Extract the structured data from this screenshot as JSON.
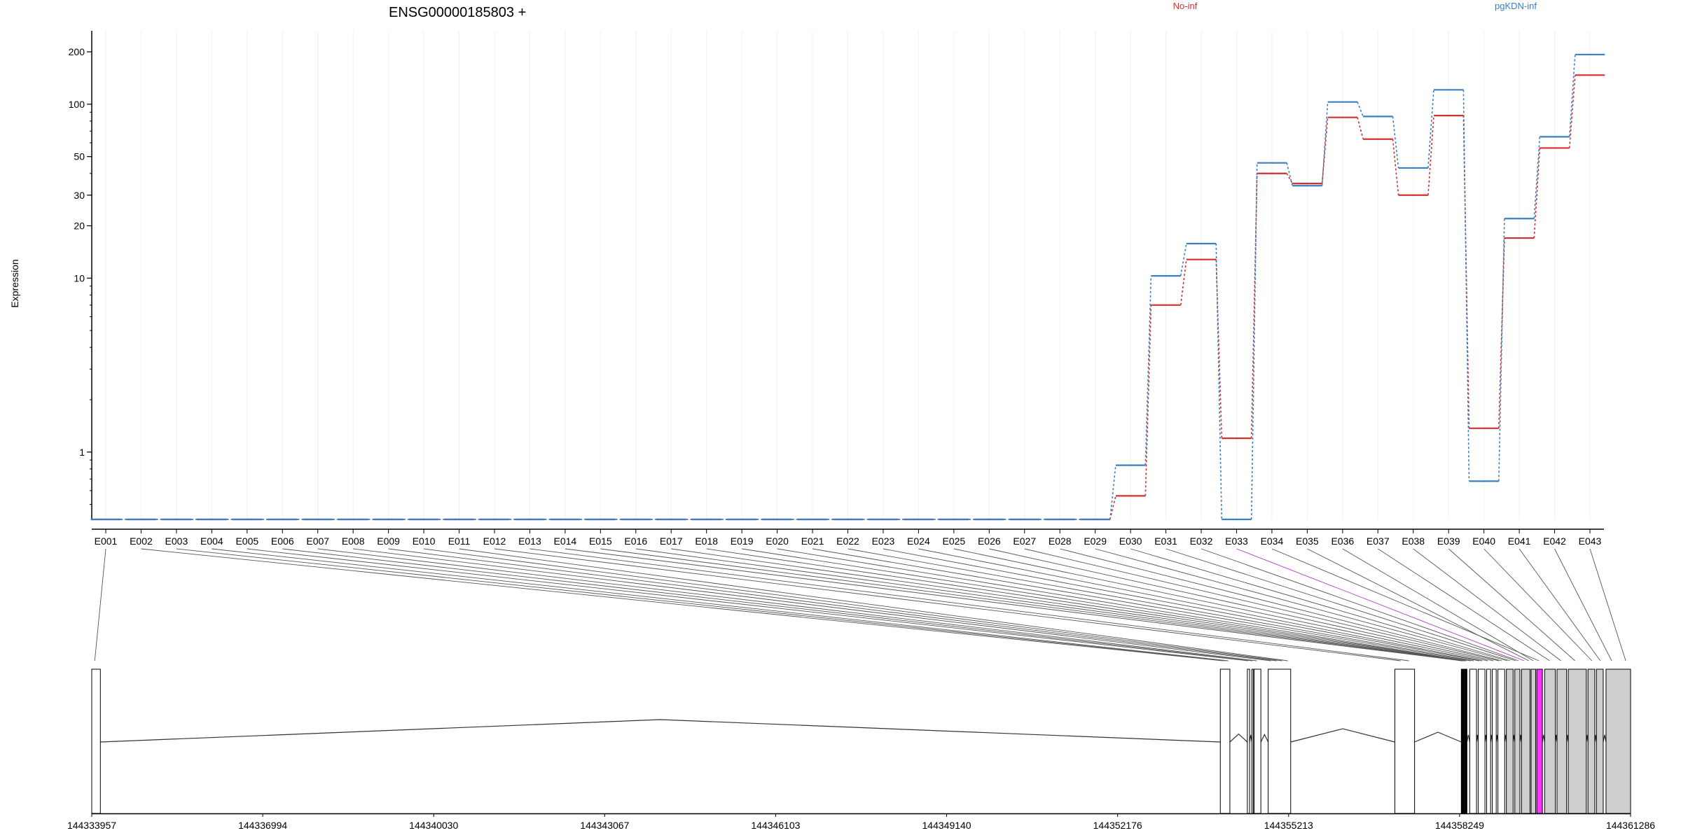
{
  "title": "ENSG00000185803 +",
  "colors": {
    "no_inf": "#d32f2f",
    "pgkdn_inf": "#3a7fc1",
    "axis": "#000000",
    "grid": "#eef0f3",
    "exon_fill": "#ffffff",
    "exon_alt_fill": "#cfcfcf",
    "highlight": "#ff33ff",
    "connector": "#555555",
    "highlight_connector": "#b040c0"
  },
  "chart_data": {
    "type": "line",
    "title": "ENSG00000185803 +",
    "xlabel": "",
    "ylabel": "Expression",
    "y_scale": "log",
    "ylim": [
      0.41,
      250
    ],
    "y_ticks": [
      1,
      10,
      20,
      30,
      50,
      100,
      200
    ],
    "y_tick_labels": [
      "1",
      "10",
      "20",
      "30",
      "50",
      "100",
      "200"
    ],
    "grid": true,
    "legend_placement": "top",
    "categories": [
      "E001",
      "E002",
      "E003",
      "E004",
      "E005",
      "E006",
      "E007",
      "E008",
      "E009",
      "E010",
      "E011",
      "E012",
      "E013",
      "E014",
      "E015",
      "E016",
      "E017",
      "E018",
      "E019",
      "E020",
      "E021",
      "E022",
      "E023",
      "E024",
      "E025",
      "E026",
      "E027",
      "E028",
      "E029",
      "E030",
      "E031",
      "E032",
      "E033",
      "E034",
      "E035",
      "E036",
      "E037",
      "E038",
      "E039",
      "E040",
      "E041",
      "E042",
      "E043"
    ],
    "series": [
      {
        "name": "No-inf",
        "color": "#d32f2f",
        "values": [
          0.41,
          0.41,
          0.41,
          0.41,
          0.41,
          0.41,
          0.41,
          0.41,
          0.41,
          0.41,
          0.41,
          0.41,
          0.41,
          0.41,
          0.41,
          0.41,
          0.41,
          0.41,
          0.41,
          0.41,
          0.41,
          0.41,
          0.41,
          0.41,
          0.41,
          0.41,
          0.41,
          0.41,
          0.41,
          0.56,
          7.0,
          12.8,
          1.2,
          40,
          35,
          84,
          63,
          30,
          86,
          1.37,
          17,
          56,
          147
        ]
      },
      {
        "name": "pgKDN-inf",
        "color": "#3a7fc1",
        "values": [
          0.41,
          0.41,
          0.41,
          0.41,
          0.41,
          0.41,
          0.41,
          0.41,
          0.41,
          0.41,
          0.41,
          0.41,
          0.41,
          0.41,
          0.41,
          0.41,
          0.41,
          0.41,
          0.41,
          0.41,
          0.41,
          0.41,
          0.41,
          0.41,
          0.41,
          0.41,
          0.41,
          0.41,
          0.41,
          0.84,
          10.3,
          15.8,
          0.41,
          46,
          34,
          103,
          85,
          43,
          121,
          0.68,
          22,
          65,
          193
        ]
      }
    ],
    "gene_model": {
      "genomic_range": [
        144333957,
        144361286
      ],
      "position_ticks": [
        "144333957",
        "144336994",
        "144340030",
        "144343067",
        "144346103",
        "144349140",
        "144352176",
        "144355213",
        "144358249",
        "144361286"
      ],
      "exons": [
        {
          "start": 144333957,
          "end": 144334110,
          "fill": "white"
        },
        {
          "start": 144354000,
          "end": 144354170,
          "fill": "white"
        },
        {
          "start": 144354480,
          "end": 144354520,
          "fill": "white"
        },
        {
          "start": 144354560,
          "end": 144354580,
          "fill": "white"
        },
        {
          "start": 144354600,
          "end": 144354720,
          "fill": "white"
        },
        {
          "start": 144354850,
          "end": 144355250,
          "fill": "white"
        },
        {
          "start": 144357100,
          "end": 144357450,
          "fill": "white"
        },
        {
          "start": 144358280,
          "end": 144358330,
          "fill": "black"
        },
        {
          "start": 144358340,
          "end": 144358380,
          "fill": "black"
        },
        {
          "start": 144358430,
          "end": 144358550,
          "fill": "white"
        },
        {
          "start": 144358580,
          "end": 144358700,
          "fill": "white"
        },
        {
          "start": 144358730,
          "end": 144358800,
          "fill": "white"
        },
        {
          "start": 144358830,
          "end": 144358900,
          "fill": "white"
        },
        {
          "start": 144358930,
          "end": 144359050,
          "fill": "white"
        },
        {
          "start": 144359080,
          "end": 144359200,
          "fill": "gray"
        },
        {
          "start": 144359230,
          "end": 144359320,
          "fill": "gray"
        },
        {
          "start": 144359350,
          "end": 144359500,
          "fill": "gray"
        },
        {
          "start": 144359520,
          "end": 144359600,
          "fill": "gray"
        },
        {
          "start": 144359620,
          "end": 144359720,
          "fill": "highlight"
        },
        {
          "start": 144359760,
          "end": 144359950,
          "fill": "gray"
        },
        {
          "start": 144359980,
          "end": 144360150,
          "fill": "gray"
        },
        {
          "start": 144360180,
          "end": 144360500,
          "fill": "gray"
        },
        {
          "start": 144360530,
          "end": 144360650,
          "fill": "gray"
        },
        {
          "start": 144360680,
          "end": 144360800,
          "fill": "gray"
        },
        {
          "start": 144360850,
          "end": 144361286,
          "fill": "gray"
        }
      ],
      "exon_bin_positions": [
        144334010,
        144354050,
        144354100,
        144354140,
        144354490,
        144354570,
        144354650,
        144354900,
        144355000,
        144355100,
        144355200,
        144357200,
        144357350,
        144358290,
        144358300,
        144358310,
        144358320,
        144358350,
        144358360,
        144358370,
        144358450,
        144358500,
        144358600,
        144358650,
        144358750,
        144358850,
        144358950,
        144359000,
        144359100,
        144359150,
        144359250,
        144359300,
        144359400,
        144359660,
        144359480,
        144359560,
        144359850,
        144360050,
        144360300,
        144360600,
        144360750,
        144360950,
        144361200
      ]
    }
  }
}
